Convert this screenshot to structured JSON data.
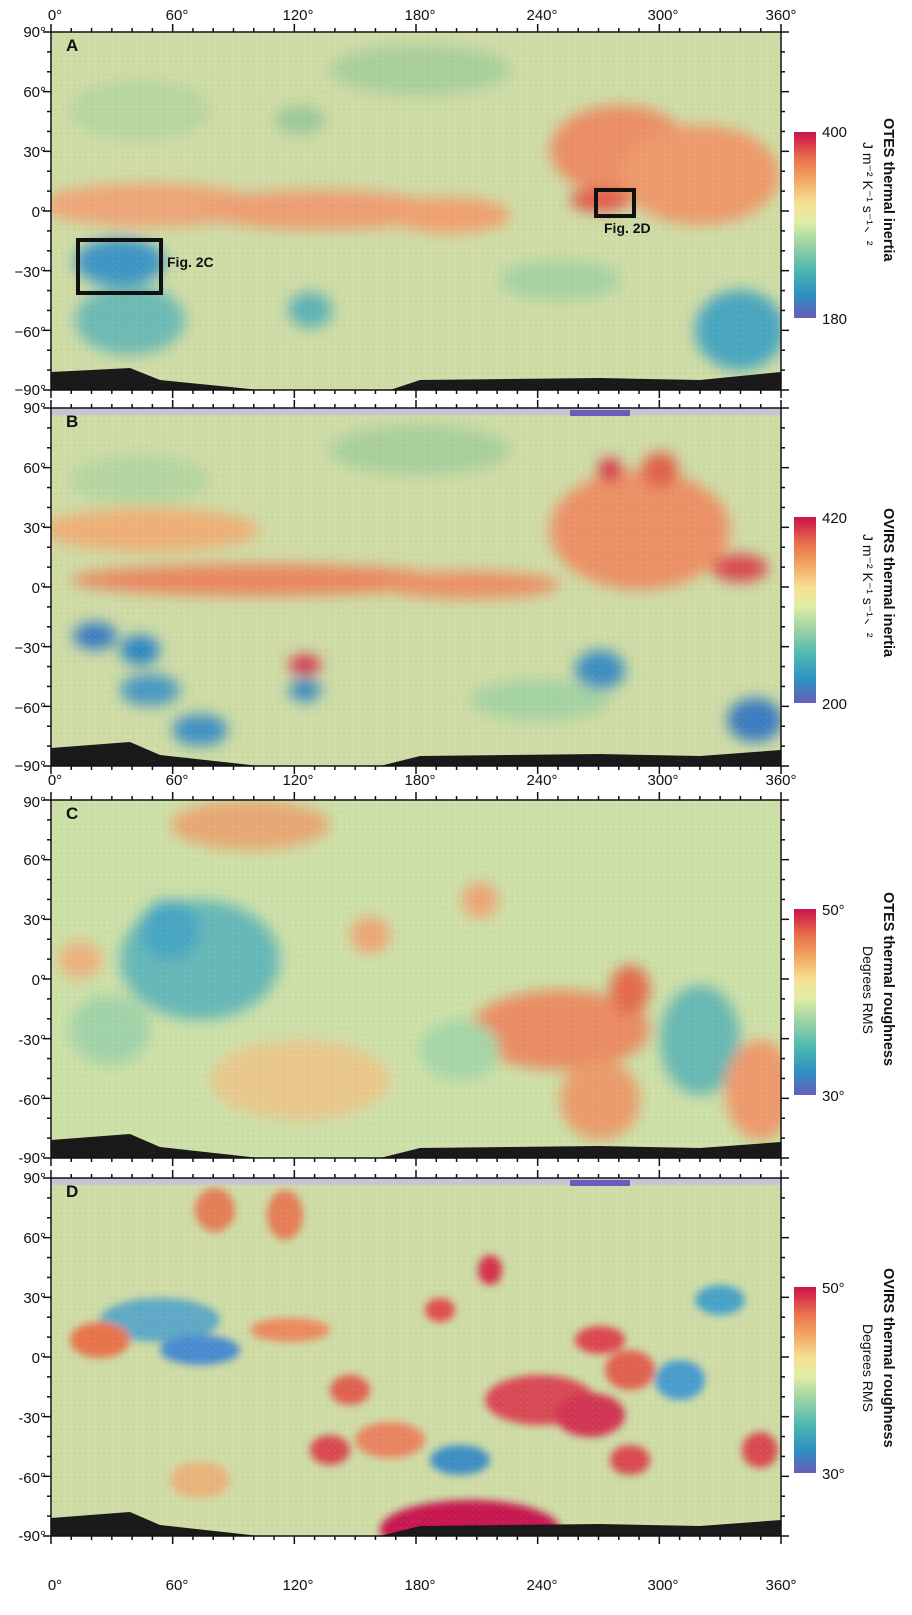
{
  "x_ticks": [
    "0°",
    "60°",
    "120°",
    "180°",
    "240°",
    "300°",
    "360°"
  ],
  "y_ticks": [
    "90°",
    "60°",
    "30°",
    "0°",
    "−30°",
    "−60°",
    "−90°"
  ],
  "y_ticks_CD": [
    "90°",
    "60°",
    "30°",
    "0°",
    "-30°",
    "-60°",
    "-90°"
  ],
  "panels": [
    {
      "letter": "A",
      "cb_title": "OTES thermal inertia",
      "cb_unit": "J m⁻² K⁻¹ s⁻¹ᐟ²",
      "cb_max": "400",
      "cb_min": "180",
      "annotations": [
        {
          "label": "Fig. 2C"
        },
        {
          "label": "Fig. 2D"
        }
      ]
    },
    {
      "letter": "B",
      "cb_title": "OVIRS thermal inertia",
      "cb_unit": "J m⁻² K⁻¹ s⁻¹ᐟ²",
      "cb_max": "420",
      "cb_min": "200"
    },
    {
      "letter": "C",
      "cb_title": "OTES thermal roughness",
      "cb_unit": "Degrees RMS",
      "cb_max": "50°",
      "cb_min": "30°"
    },
    {
      "letter": "D",
      "cb_title": "OVIRS thermal roughness",
      "cb_unit": "Degrees RMS",
      "cb_max": "50°",
      "cb_min": "30°"
    }
  ],
  "colorscale": [
    "#6a5cb8",
    "#2e8fc2",
    "#49b6b0",
    "#9fd3a4",
    "#dfeea7",
    "#f6e092",
    "#f2a865",
    "#e8704b",
    "#d6304b",
    "#c8174f"
  ],
  "map_background": "#c9d8a4"
}
